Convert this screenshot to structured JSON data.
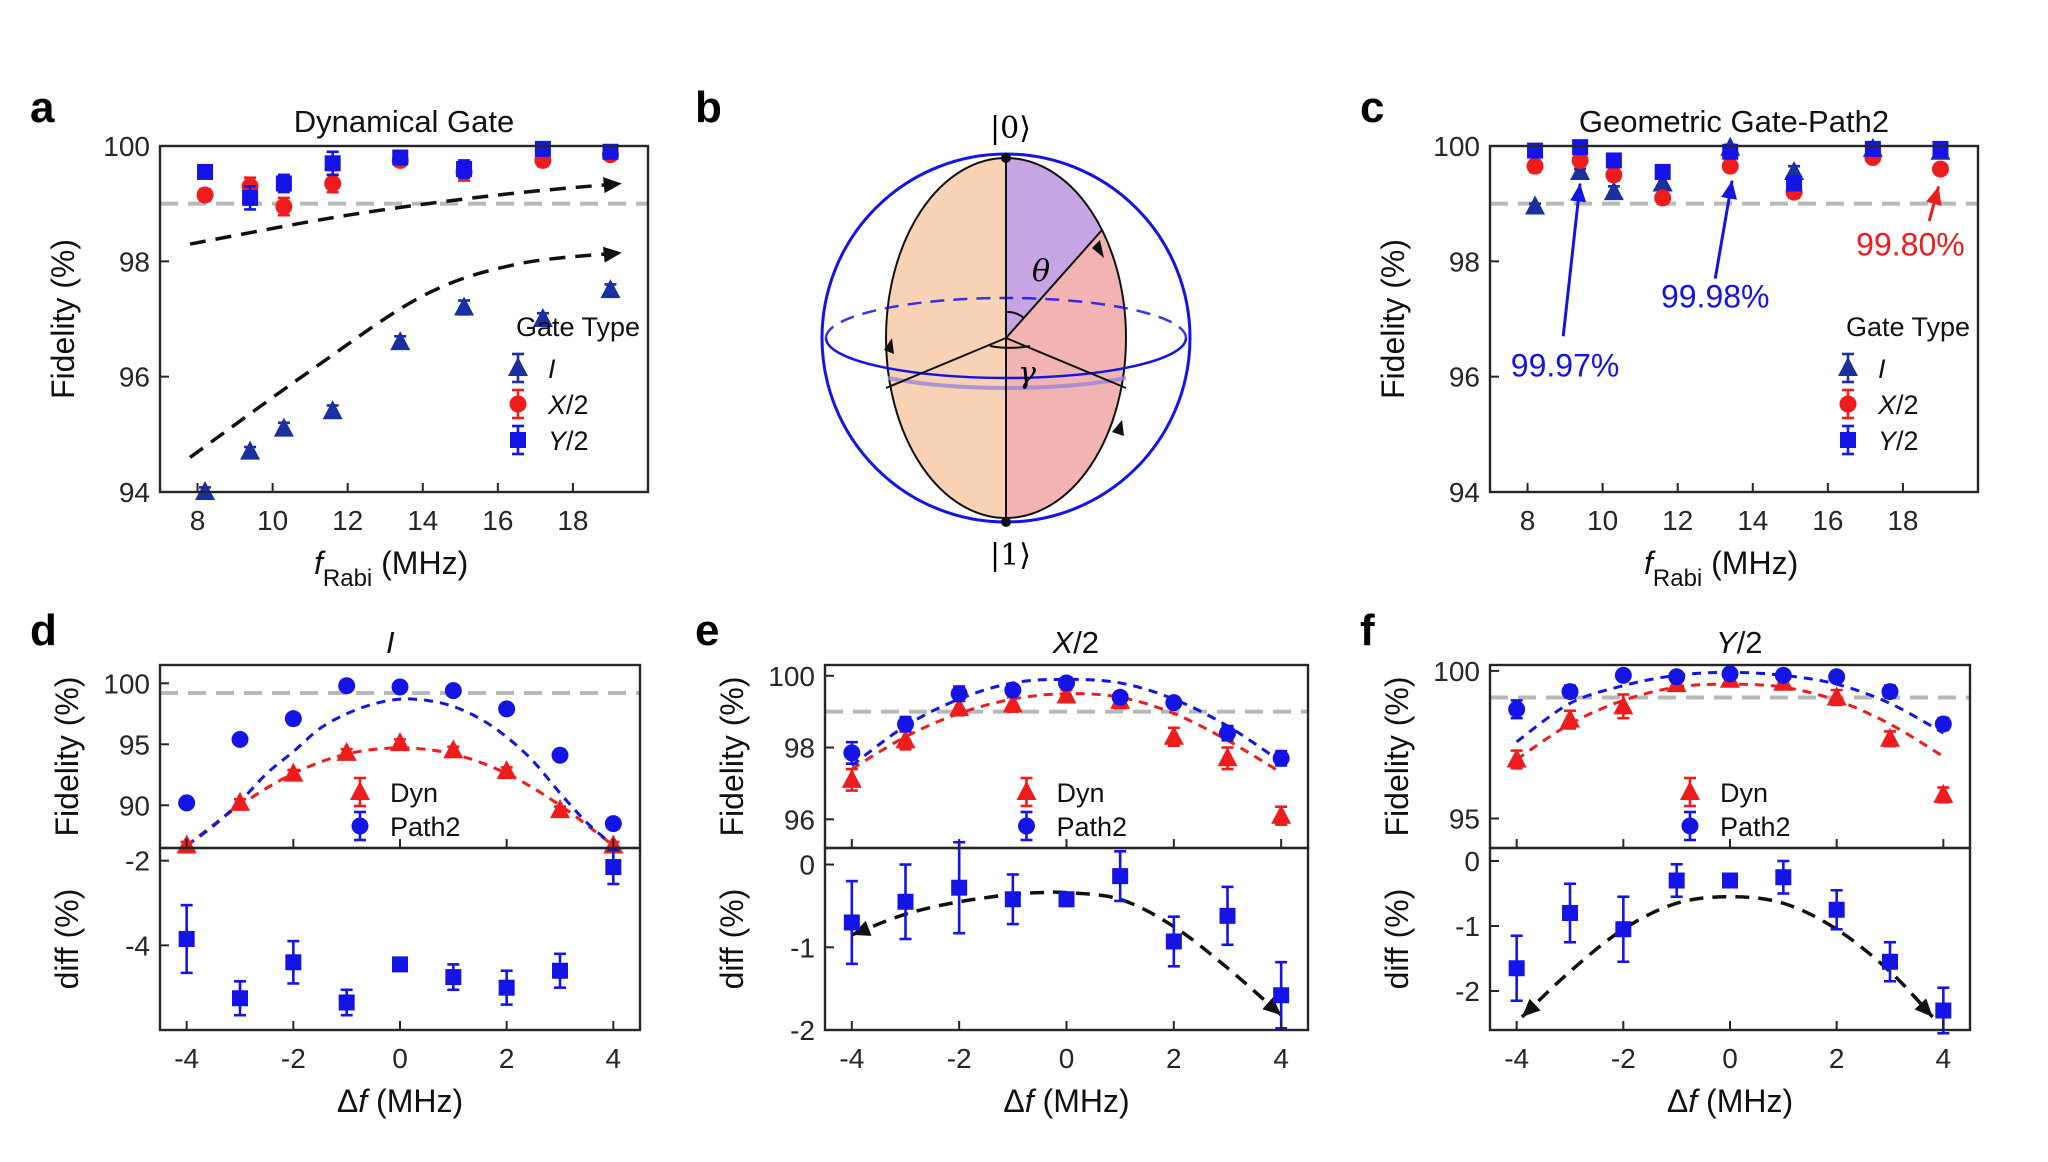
{
  "colors": {
    "blue": "#1414e6",
    "red": "#ee1c1c",
    "darkblue": "#1a2fa0",
    "ref": "#b8b8b8",
    "black": "#111111"
  },
  "panel_labels": {
    "a": "a",
    "b": "b",
    "c": "c",
    "d": "d",
    "e": "e",
    "f": "f"
  },
  "bloch": {
    "ket0": "|0⟩",
    "ket1": "|1⟩",
    "theta": "θ",
    "gamma": "γ"
  },
  "chart_data": [
    {
      "id": "a",
      "type": "scatter",
      "title": "Dynamical Gate",
      "xlabel_main": "f",
      "xlabel_sub": "Rabi",
      "xlabel_unit": " (MHz)",
      "ylabel": "Fidelity (%)",
      "xlim": [
        7,
        20
      ],
      "ylim": [
        94,
        100
      ],
      "xticks": [
        8,
        10,
        12,
        14,
        16,
        18
      ],
      "yticks": [
        94,
        96,
        98,
        100
      ],
      "ref_line": 99,
      "legend": {
        "title": "Gate Type",
        "items": [
          "I",
          "X/2",
          "Y/2"
        ]
      },
      "series": [
        {
          "name": "I",
          "marker": "triangle",
          "color": "darkblue",
          "x": [
            8.2,
            9.4,
            10.3,
            11.6,
            13.4,
            15.1,
            17.2,
            19.0
          ],
          "y": [
            94.0,
            94.7,
            95.1,
            95.4,
            96.6,
            97.2,
            97.0,
            97.5
          ],
          "err": [
            0.08,
            0.08,
            0.1,
            0.1,
            0.1,
            0.12,
            0.1,
            0.1
          ]
        },
        {
          "name": "X/2",
          "marker": "circle",
          "color": "red",
          "x": [
            8.2,
            9.4,
            10.3,
            11.6,
            13.4,
            15.1,
            17.2,
            19.0
          ],
          "y": [
            99.15,
            99.3,
            98.95,
            99.35,
            99.75,
            99.55,
            99.75,
            99.85
          ],
          "err": [
            0.1,
            0.15,
            0.15,
            0.15,
            0.1,
            0.15,
            0.1,
            0.05
          ]
        },
        {
          "name": "Y/2",
          "marker": "square",
          "color": "blue",
          "x": [
            8.2,
            9.4,
            10.3,
            11.6,
            13.4,
            15.1,
            17.2,
            19.0
          ],
          "y": [
            99.55,
            99.1,
            99.35,
            99.7,
            99.8,
            99.6,
            99.95,
            99.9
          ],
          "err": [
            0.1,
            0.2,
            0.15,
            0.2,
            0.1,
            0.15,
            0.05,
            0.05
          ]
        }
      ],
      "trend_arrows": [
        {
          "x": [
            7.8,
            12,
            16,
            19.3
          ],
          "y": [
            98.3,
            98.8,
            99.15,
            99.35
          ]
        },
        {
          "x": [
            7.8,
            11,
            14,
            16.5,
            19.3
          ],
          "y": [
            94.6,
            96.1,
            97.4,
            97.95,
            98.15
          ]
        }
      ]
    },
    {
      "id": "c",
      "type": "scatter",
      "title": "Geometric Gate-Path2",
      "xlabel_main": "f",
      "xlabel_sub": "Rabi",
      "xlabel_unit": " (MHz)",
      "ylabel": "Fidelity (%)",
      "xlim": [
        7,
        20
      ],
      "ylim": [
        94,
        100
      ],
      "xticks": [
        8,
        10,
        12,
        14,
        16,
        18
      ],
      "yticks": [
        94,
        96,
        98,
        100
      ],
      "ref_line": 99,
      "legend": {
        "title": "Gate Type",
        "items": [
          "I",
          "X/2",
          "Y/2"
        ]
      },
      "series": [
        {
          "name": "I",
          "marker": "triangle",
          "color": "darkblue",
          "x": [
            8.2,
            9.4,
            10.3,
            11.6,
            13.4,
            15.1,
            17.2,
            19.0
          ],
          "y": [
            98.95,
            99.55,
            99.2,
            99.35,
            99.97,
            99.55,
            99.95,
            99.9
          ],
          "err": [
            0.05,
            0.05,
            0.1,
            0.1,
            0.05,
            0.1,
            0.05,
            0.05
          ]
        },
        {
          "name": "X/2",
          "marker": "circle",
          "color": "red",
          "x": [
            8.2,
            9.4,
            10.3,
            11.6,
            13.4,
            15.1,
            17.2,
            19.0
          ],
          "y": [
            99.65,
            99.75,
            99.5,
            99.1,
            99.65,
            99.2,
            99.8,
            99.6
          ],
          "err": [
            0.1,
            0.1,
            0.1,
            0.1,
            0.05,
            0.1,
            0.05,
            0.05
          ]
        },
        {
          "name": "Y/2",
          "marker": "square",
          "color": "blue",
          "x": [
            8.2,
            9.4,
            10.3,
            11.6,
            13.4,
            15.1,
            17.2,
            19.0
          ],
          "y": [
            99.92,
            99.98,
            99.75,
            99.55,
            99.9,
            99.35,
            99.95,
            99.95
          ],
          "err": [
            0.05,
            0.05,
            0.05,
            0.1,
            0.05,
            0.1,
            0.05,
            0.05
          ]
        }
      ],
      "annotations": [
        {
          "text": "99.97%",
          "color": "blue",
          "tx": 9.0,
          "ty": 96.0,
          "ax": 8.95,
          "ay": 96.7,
          "bx": 9.4,
          "by": 99.35
        },
        {
          "text": "99.98%",
          "color": "blue",
          "tx": 13.0,
          "ty": 97.2,
          "ax": 13.0,
          "ay": 97.7,
          "bx": 13.45,
          "by": 99.4
        },
        {
          "text": "99.80%",
          "color": "red",
          "tx": 18.2,
          "ty": 98.1,
          "ax": 18.7,
          "ay": 98.7,
          "bx": 18.95,
          "by": 99.3
        }
      ]
    },
    {
      "id": "d",
      "type": "scatter",
      "title": "I",
      "xlabel": "Δf (MHz)",
      "ylabel_top": "Fidelity (%)",
      "ylabel_bot": "diff (%)",
      "xlim": [
        -4.5,
        4.5
      ],
      "ylim_top": [
        86.5,
        101.5
      ],
      "ylim_bot": [
        -6.0,
        -1.7
      ],
      "xticks": [
        -4,
        -2,
        0,
        2,
        4
      ],
      "yticks_top": [
        90,
        95,
        100
      ],
      "yticks_bot": [
        -4,
        -2
      ],
      "ref_line": 99.2,
      "legend": {
        "items": [
          "Dyn",
          "Path2"
        ]
      },
      "top_series": [
        {
          "name": "Dyn",
          "marker": "triangle",
          "color": "red",
          "x": [
            -4,
            -3,
            -2,
            -1,
            0,
            1,
            2,
            3,
            4
          ],
          "y": [
            86.7,
            90.2,
            92.6,
            94.3,
            95.1,
            94.5,
            92.8,
            89.6,
            86.7
          ],
          "err": [
            0.3,
            0.3,
            0.3,
            0.3,
            0.3,
            0.3,
            0.3,
            0.3,
            0.3
          ]
        },
        {
          "name": "Path2",
          "marker": "circle",
          "color": "blue",
          "x": [
            -4,
            -3,
            -2,
            -1,
            0,
            1,
            2,
            3,
            4
          ],
          "y": [
            90.2,
            95.4,
            97.1,
            99.8,
            99.7,
            99.4,
            97.9,
            94.1,
            88.5
          ],
          "err": [
            0.3,
            0.2,
            0.2,
            0.1,
            0.1,
            0.1,
            0.2,
            0.2,
            0.3
          ]
        }
      ],
      "fits": [
        {
          "color": "red",
          "x": [
            -4,
            -3,
            -2,
            -1,
            0,
            1,
            2,
            3,
            4
          ],
          "y": [
            86.7,
            90.0,
            92.6,
            94.2,
            94.7,
            94.2,
            92.6,
            90.0,
            86.7
          ]
        },
        {
          "color": "blue",
          "x": [
            -4,
            -3.5,
            -3,
            -2.5,
            -2,
            -1.5,
            -1,
            -0.5,
            0,
            0.5,
            1,
            1.5,
            2,
            2.5,
            3,
            3.5,
            4
          ],
          "y": [
            86.7,
            88.3,
            90.3,
            92.6,
            94.4,
            96.3,
            97.5,
            98.3,
            98.7,
            98.6,
            98.1,
            97.1,
            95.6,
            93.6,
            91.0,
            88.6,
            86.7
          ]
        }
      ],
      "bot_series": [
        {
          "marker": "square",
          "color": "blue",
          "x": [
            -4,
            -3,
            -2,
            -1,
            0,
            1,
            2,
            3,
            4
          ],
          "y": [
            -3.85,
            -5.25,
            -4.4,
            -5.35,
            -4.45,
            -4.75,
            -5.0,
            -4.6,
            -2.15
          ],
          "err": [
            0.8,
            0.4,
            0.5,
            0.3,
            0.1,
            0.3,
            0.4,
            0.4,
            0.4
          ]
        }
      ]
    },
    {
      "id": "e",
      "type": "scatter",
      "title": "X/2",
      "xlabel": "Δf (MHz)",
      "ylabel_top": "Fidelity (%)",
      "ylabel_bot": "diff (%)",
      "xlim": [
        -4.5,
        4.5
      ],
      "ylim_top": [
        95.2,
        100.3
      ],
      "ylim_bot": [
        -2.0,
        0.2
      ],
      "xticks": [
        -4,
        -2,
        0,
        2,
        4
      ],
      "yticks_top": [
        96,
        98,
        100
      ],
      "yticks_bot": [
        -2,
        -1,
        0
      ],
      "ref_line": 99.0,
      "legend": {
        "items": [
          "Dyn",
          "Path2"
        ]
      },
      "top_series": [
        {
          "name": "Dyn",
          "marker": "triangle",
          "color": "red",
          "x": [
            -4,
            -3,
            -2,
            -1,
            0,
            1,
            2,
            3,
            4
          ],
          "y": [
            97.1,
            98.2,
            99.1,
            99.2,
            99.45,
            99.3,
            98.3,
            97.7,
            96.1
          ],
          "err": [
            0.3,
            0.25,
            0.2,
            0.2,
            0.15,
            0.2,
            0.25,
            0.3,
            0.25
          ]
        },
        {
          "name": "Path2",
          "marker": "circle",
          "color": "blue",
          "x": [
            -4,
            -3,
            -2,
            -1,
            0,
            1,
            2,
            3,
            4
          ],
          "y": [
            97.85,
            98.65,
            99.5,
            99.6,
            99.8,
            99.4,
            99.25,
            98.4,
            97.7
          ],
          "err": [
            0.3,
            0.2,
            0.2,
            0.1,
            0.1,
            0.1,
            0.1,
            0.2,
            0.2
          ]
        }
      ],
      "fits": [
        {
          "color": "red",
          "x": [
            -4,
            -3,
            -2,
            -1,
            0,
            1,
            2,
            3,
            4
          ],
          "y": [
            97.4,
            98.3,
            98.95,
            99.35,
            99.5,
            99.4,
            98.95,
            98.2,
            97.3
          ]
        },
        {
          "color": "blue",
          "x": [
            -4,
            -3,
            -2,
            -1,
            0,
            1,
            2,
            3,
            4
          ],
          "y": [
            97.5,
            98.6,
            99.35,
            99.8,
            99.9,
            99.8,
            99.35,
            98.6,
            97.6
          ]
        }
      ],
      "bot_series": [
        {
          "marker": "square",
          "color": "blue",
          "x": [
            -4,
            -3,
            -2,
            -1,
            0,
            1,
            2,
            3,
            4
          ],
          "y": [
            -0.7,
            -0.45,
            -0.28,
            -0.42,
            -0.42,
            -0.14,
            -0.93,
            -0.62,
            -1.58
          ],
          "err": [
            0.5,
            0.45,
            0.55,
            0.3,
            0.08,
            0.3,
            0.3,
            0.35,
            0.4
          ]
        }
      ],
      "trend_arrow": {
        "x": [
          -4,
          -3,
          -2,
          -1,
          -0.5,
          0,
          1,
          2,
          3,
          4
        ],
        "y": [
          -0.85,
          -0.6,
          -0.45,
          -0.36,
          -0.34,
          -0.34,
          -0.42,
          -0.75,
          -1.25,
          -1.82
        ]
      }
    },
    {
      "id": "f",
      "type": "scatter",
      "title": "Y/2",
      "xlabel": "Δf (MHz)",
      "ylabel_top": "Fidelity (%)",
      "ylabel_bot": "diff (%)",
      "xlim": [
        -4.5,
        4.5
      ],
      "ylim_top": [
        94.0,
        100.2
      ],
      "ylim_bot": [
        -2.6,
        0.2
      ],
      "xticks": [
        -4,
        -2,
        0,
        2,
        4
      ],
      "yticks_top": [
        95,
        100
      ],
      "yticks_bot": [
        -2,
        -1,
        0
      ],
      "ref_line": 99.1,
      "legend": {
        "items": [
          "Dyn",
          "Path2"
        ]
      },
      "top_series": [
        {
          "name": "Dyn",
          "marker": "triangle",
          "color": "red",
          "x": [
            -4,
            -3,
            -2,
            -1,
            0,
            1,
            2,
            3,
            4
          ],
          "y": [
            97.0,
            98.35,
            98.8,
            99.55,
            99.7,
            99.6,
            99.1,
            97.7,
            95.8
          ],
          "err": [
            0.3,
            0.3,
            0.4,
            0.2,
            0.15,
            0.2,
            0.25,
            0.25,
            0.25
          ]
        },
        {
          "name": "Path2",
          "marker": "circle",
          "color": "blue",
          "x": [
            -4,
            -3,
            -2,
            -1,
            0,
            1,
            2,
            3,
            4
          ],
          "y": [
            98.7,
            99.3,
            99.85,
            99.8,
            99.9,
            99.85,
            99.8,
            99.3,
            98.2
          ],
          "err": [
            0.3,
            0.2,
            0.1,
            0.1,
            0.1,
            0.1,
            0.1,
            0.2,
            0.2
          ]
        }
      ],
      "fits": [
        {
          "color": "red",
          "x": [
            -4,
            -3,
            -2,
            -1,
            0,
            1,
            2,
            3,
            4
          ],
          "y": [
            97.0,
            98.2,
            99.0,
            99.45,
            99.55,
            99.45,
            99.0,
            98.2,
            97.1
          ]
        },
        {
          "color": "blue",
          "x": [
            -4,
            -3,
            -2,
            -1,
            0,
            1,
            2,
            3,
            4
          ],
          "y": [
            97.6,
            98.9,
            99.5,
            99.85,
            99.95,
            99.85,
            99.55,
            98.9,
            97.9
          ]
        }
      ],
      "bot_series": [
        {
          "marker": "square",
          "color": "blue",
          "x": [
            -4,
            -3,
            -2,
            -1,
            0,
            1,
            2,
            3,
            4
          ],
          "y": [
            -1.65,
            -0.8,
            -1.05,
            -0.3,
            -0.3,
            -0.25,
            -0.75,
            -1.55,
            -2.3
          ],
          "err": [
            0.5,
            0.45,
            0.5,
            0.25,
            0.1,
            0.25,
            0.3,
            0.3,
            0.35
          ]
        }
      ],
      "trend_arrow": {
        "x": [
          -3.9,
          -3,
          -2,
          -1,
          0,
          1,
          2,
          3,
          3.8
        ],
        "y": [
          -2.4,
          -1.7,
          -1.05,
          -0.65,
          -0.55,
          -0.65,
          -1.05,
          -1.7,
          -2.4
        ]
      }
    }
  ]
}
